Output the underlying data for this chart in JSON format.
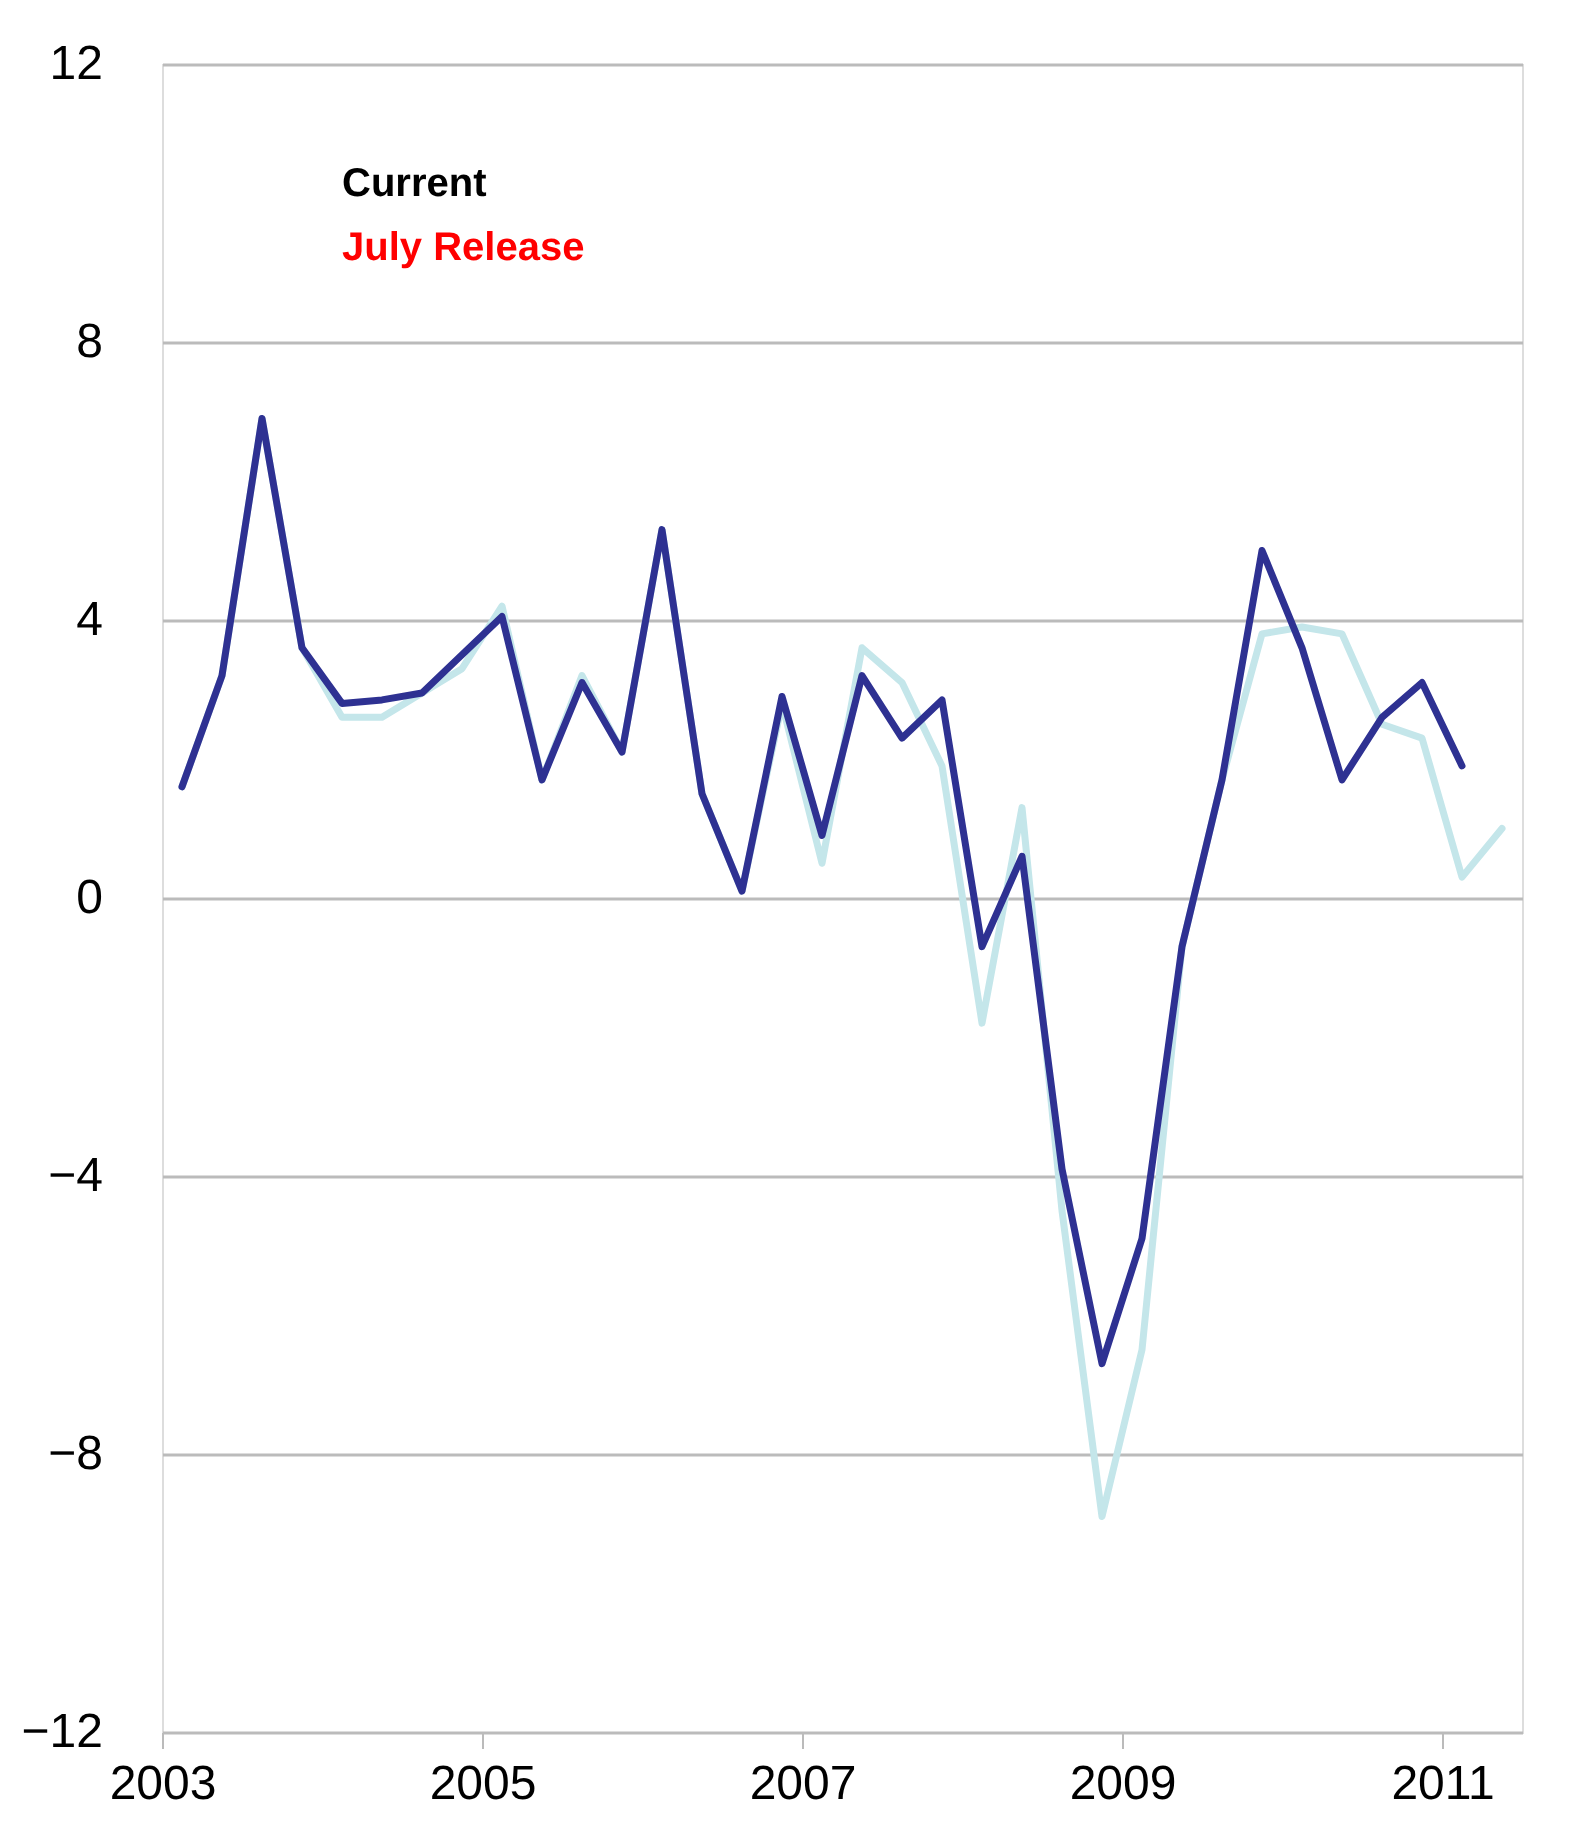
{
  "chart_data": {
    "type": "line",
    "annotations": [
      "Current",
      "July Release"
    ],
    "x": [
      2003.125,
      2003.375,
      2003.625,
      2003.875,
      2004.125,
      2004.375,
      2004.625,
      2004.875,
      2005.125,
      2005.375,
      2005.625,
      2005.875,
      2006.125,
      2006.375,
      2006.625,
      2006.875,
      2007.125,
      2007.375,
      2007.625,
      2007.875,
      2008.125,
      2008.375,
      2008.625,
      2008.875,
      2009.125,
      2009.375,
      2009.625,
      2009.875,
      2010.125,
      2010.375,
      2010.625,
      2010.875,
      2011.125,
      2011.375
    ],
    "series": [
      {
        "color": "#c4e6ea",
        "values": [
          1.6,
          3.2,
          6.9,
          3.6,
          2.6,
          2.6,
          2.95,
          3.3,
          4.2,
          1.7,
          3.2,
          2.1,
          5.3,
          1.5,
          0.1,
          2.8,
          0.5,
          3.6,
          3.1,
          1.9,
          -1.8,
          1.3,
          -4.5,
          -8.9,
          -6.5,
          -0.7,
          1.7,
          3.8,
          3.9,
          3.8,
          2.5,
          2.3,
          0.3,
          1.0
        ]
      },
      {
        "color": "#2e3192",
        "values": [
          1.6,
          3.2,
          6.9,
          3.6,
          2.8,
          2.85,
          2.95,
          3.5,
          4.05,
          1.7,
          3.1,
          2.1,
          5.3,
          1.5,
          0.1,
          2.9,
          0.9,
          3.2,
          2.3,
          2.85,
          -0.7,
          0.6,
          -3.9,
          -6.7,
          -4.9,
          -0.7,
          1.7,
          5.0,
          3.6,
          1.7,
          2.6,
          3.1,
          1.9,
          null
        ]
      }
    ],
    "xlim": [
      2003,
      2011.5
    ],
    "xticks": [
      2003,
      2005,
      2007,
      2009,
      2011
    ],
    "ylim": [
      -12,
      12
    ],
    "yticks": [
      -12,
      -8,
      -4,
      0,
      4,
      8,
      12
    ],
    "grid": "y",
    "legend": false,
    "marker": "none",
    "line_style": "solid"
  }
}
